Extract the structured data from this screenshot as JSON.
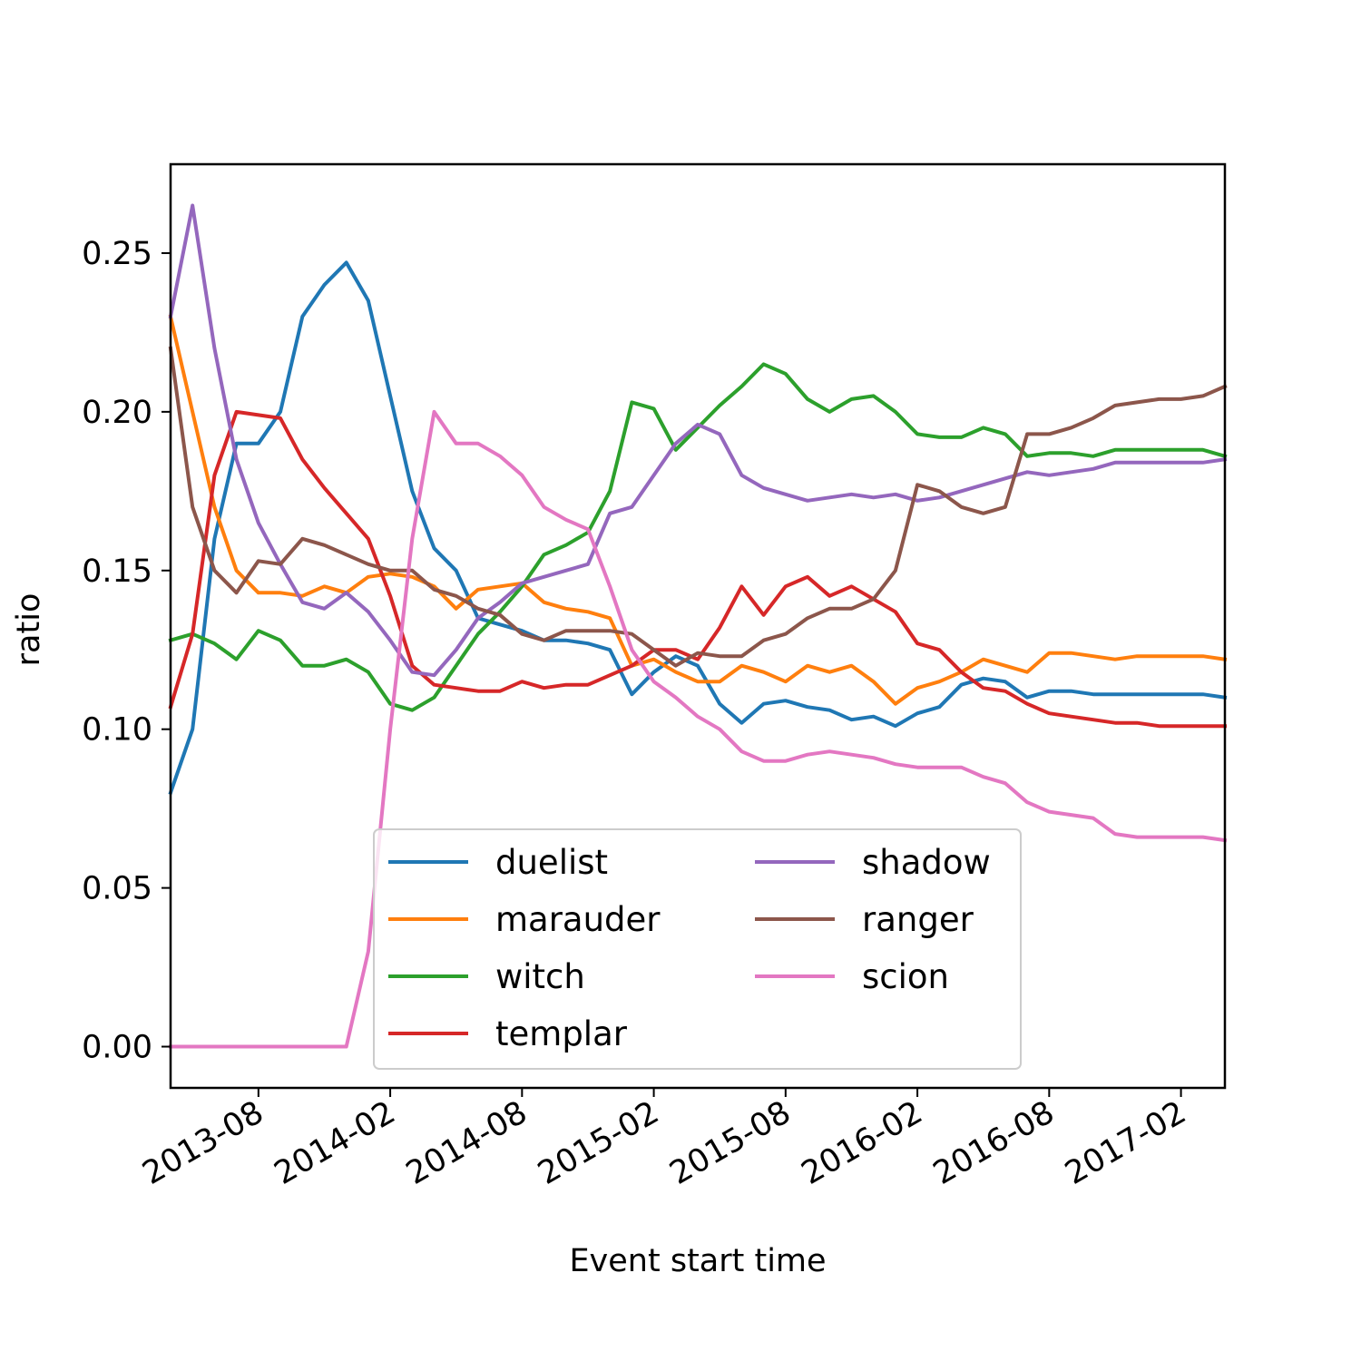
{
  "chart_data": {
    "type": "line",
    "xlabel": "Event start time",
    "ylabel": "ratio",
    "x_tick_labels": [
      "2013-08",
      "2014-02",
      "2014-08",
      "2015-02",
      "2015-08",
      "2016-02",
      "2016-08",
      "2017-02"
    ],
    "y_tick_labels": [
      "0.00",
      "0.05",
      "0.10",
      "0.15",
      "0.20",
      "0.25"
    ],
    "y_ticks": [
      0.0,
      0.05,
      0.1,
      0.15,
      0.2,
      0.25
    ],
    "ylim": [
      -0.013,
      0.278
    ],
    "x_start": "2013-04",
    "x_end": "2017-02",
    "months": [
      0,
      1,
      2,
      3,
      4,
      5,
      6,
      7,
      8,
      9,
      10,
      11,
      12,
      13,
      14,
      15,
      16,
      17,
      18,
      19,
      20,
      21,
      22,
      23,
      24,
      25,
      26,
      27,
      28,
      29,
      30,
      31,
      32,
      33,
      34,
      35,
      36,
      37,
      38,
      39,
      40,
      41,
      42,
      43,
      44,
      45,
      46,
      47,
      48
    ],
    "legend": {
      "location": "lower center",
      "columns": 2
    },
    "series": [
      {
        "name": "duelist",
        "color": "#1f77b4",
        "values": [
          0.08,
          0.1,
          0.16,
          0.19,
          0.19,
          0.2,
          0.23,
          0.24,
          0.247,
          0.235,
          0.205,
          0.175,
          0.157,
          0.15,
          0.135,
          0.133,
          0.131,
          0.128,
          0.128,
          0.127,
          0.125,
          0.111,
          0.118,
          0.123,
          0.12,
          0.108,
          0.102,
          0.108,
          0.109,
          0.107,
          0.106,
          0.103,
          0.104,
          0.101,
          0.105,
          0.107,
          0.114,
          0.116,
          0.115,
          0.11,
          0.112,
          0.112,
          0.111,
          0.111,
          0.111,
          0.111,
          0.111,
          0.111,
          0.11
        ]
      },
      {
        "name": "marauder",
        "color": "#ff7f0e",
        "values": [
          0.23,
          0.2,
          0.17,
          0.15,
          0.143,
          0.143,
          0.142,
          0.145,
          0.143,
          0.148,
          0.149,
          0.148,
          0.145,
          0.138,
          0.144,
          0.145,
          0.146,
          0.14,
          0.138,
          0.137,
          0.135,
          0.12,
          0.122,
          0.118,
          0.115,
          0.115,
          0.12,
          0.118,
          0.115,
          0.12,
          0.118,
          0.12,
          0.115,
          0.108,
          0.113,
          0.115,
          0.118,
          0.122,
          0.12,
          0.118,
          0.124,
          0.124,
          0.123,
          0.122,
          0.123,
          0.123,
          0.123,
          0.123,
          0.122
        ]
      },
      {
        "name": "witch",
        "color": "#2ca02c",
        "values": [
          0.128,
          0.13,
          0.127,
          0.122,
          0.131,
          0.128,
          0.12,
          0.12,
          0.122,
          0.118,
          0.108,
          0.106,
          0.11,
          0.12,
          0.13,
          0.137,
          0.145,
          0.155,
          0.158,
          0.162,
          0.175,
          0.203,
          0.201,
          0.188,
          0.195,
          0.202,
          0.208,
          0.215,
          0.212,
          0.204,
          0.2,
          0.204,
          0.205,
          0.2,
          0.193,
          0.192,
          0.192,
          0.195,
          0.193,
          0.186,
          0.187,
          0.187,
          0.186,
          0.188,
          0.188,
          0.188,
          0.188,
          0.188,
          0.186
        ]
      },
      {
        "name": "templar",
        "color": "#d62728",
        "values": [
          0.107,
          0.13,
          0.18,
          0.2,
          0.199,
          0.198,
          0.185,
          0.176,
          0.168,
          0.16,
          0.142,
          0.12,
          0.114,
          0.113,
          0.112,
          0.112,
          0.115,
          0.113,
          0.114,
          0.114,
          0.117,
          0.12,
          0.125,
          0.125,
          0.122,
          0.132,
          0.145,
          0.136,
          0.145,
          0.148,
          0.142,
          0.145,
          0.141,
          0.137,
          0.127,
          0.125,
          0.118,
          0.113,
          0.112,
          0.108,
          0.105,
          0.104,
          0.103,
          0.102,
          0.102,
          0.101,
          0.101,
          0.101,
          0.101
        ]
      },
      {
        "name": "shadow",
        "color": "#9467bd",
        "values": [
          0.23,
          0.265,
          0.22,
          0.185,
          0.165,
          0.152,
          0.14,
          0.138,
          0.143,
          0.137,
          0.128,
          0.118,
          0.117,
          0.125,
          0.135,
          0.14,
          0.146,
          0.148,
          0.15,
          0.152,
          0.168,
          0.17,
          0.18,
          0.19,
          0.196,
          0.193,
          0.18,
          0.176,
          0.174,
          0.172,
          0.173,
          0.174,
          0.173,
          0.174,
          0.172,
          0.173,
          0.175,
          0.177,
          0.179,
          0.181,
          0.18,
          0.181,
          0.182,
          0.184,
          0.184,
          0.184,
          0.184,
          0.184,
          0.185
        ]
      },
      {
        "name": "ranger",
        "color": "#8c564b",
        "values": [
          0.22,
          0.17,
          0.15,
          0.143,
          0.153,
          0.152,
          0.16,
          0.158,
          0.155,
          0.152,
          0.15,
          0.15,
          0.144,
          0.142,
          0.138,
          0.136,
          0.13,
          0.128,
          0.131,
          0.131,
          0.131,
          0.13,
          0.125,
          0.12,
          0.124,
          0.123,
          0.123,
          0.128,
          0.13,
          0.135,
          0.138,
          0.138,
          0.141,
          0.15,
          0.177,
          0.175,
          0.17,
          0.168,
          0.17,
          0.193,
          0.193,
          0.195,
          0.198,
          0.202,
          0.203,
          0.204,
          0.204,
          0.205,
          0.208
        ]
      },
      {
        "name": "scion",
        "color": "#e377c2",
        "values": [
          0.0,
          0.0,
          0.0,
          0.0,
          0.0,
          0.0,
          0.0,
          0.0,
          0.0,
          0.03,
          0.1,
          0.16,
          0.2,
          0.19,
          0.19,
          0.186,
          0.18,
          0.17,
          0.166,
          0.163,
          0.145,
          0.125,
          0.115,
          0.11,
          0.104,
          0.1,
          0.093,
          0.09,
          0.09,
          0.092,
          0.093,
          0.092,
          0.091,
          0.089,
          0.088,
          0.088,
          0.088,
          0.085,
          0.083,
          0.077,
          0.074,
          0.073,
          0.072,
          0.067,
          0.066,
          0.066,
          0.066,
          0.066,
          0.065
        ]
      }
    ]
  }
}
